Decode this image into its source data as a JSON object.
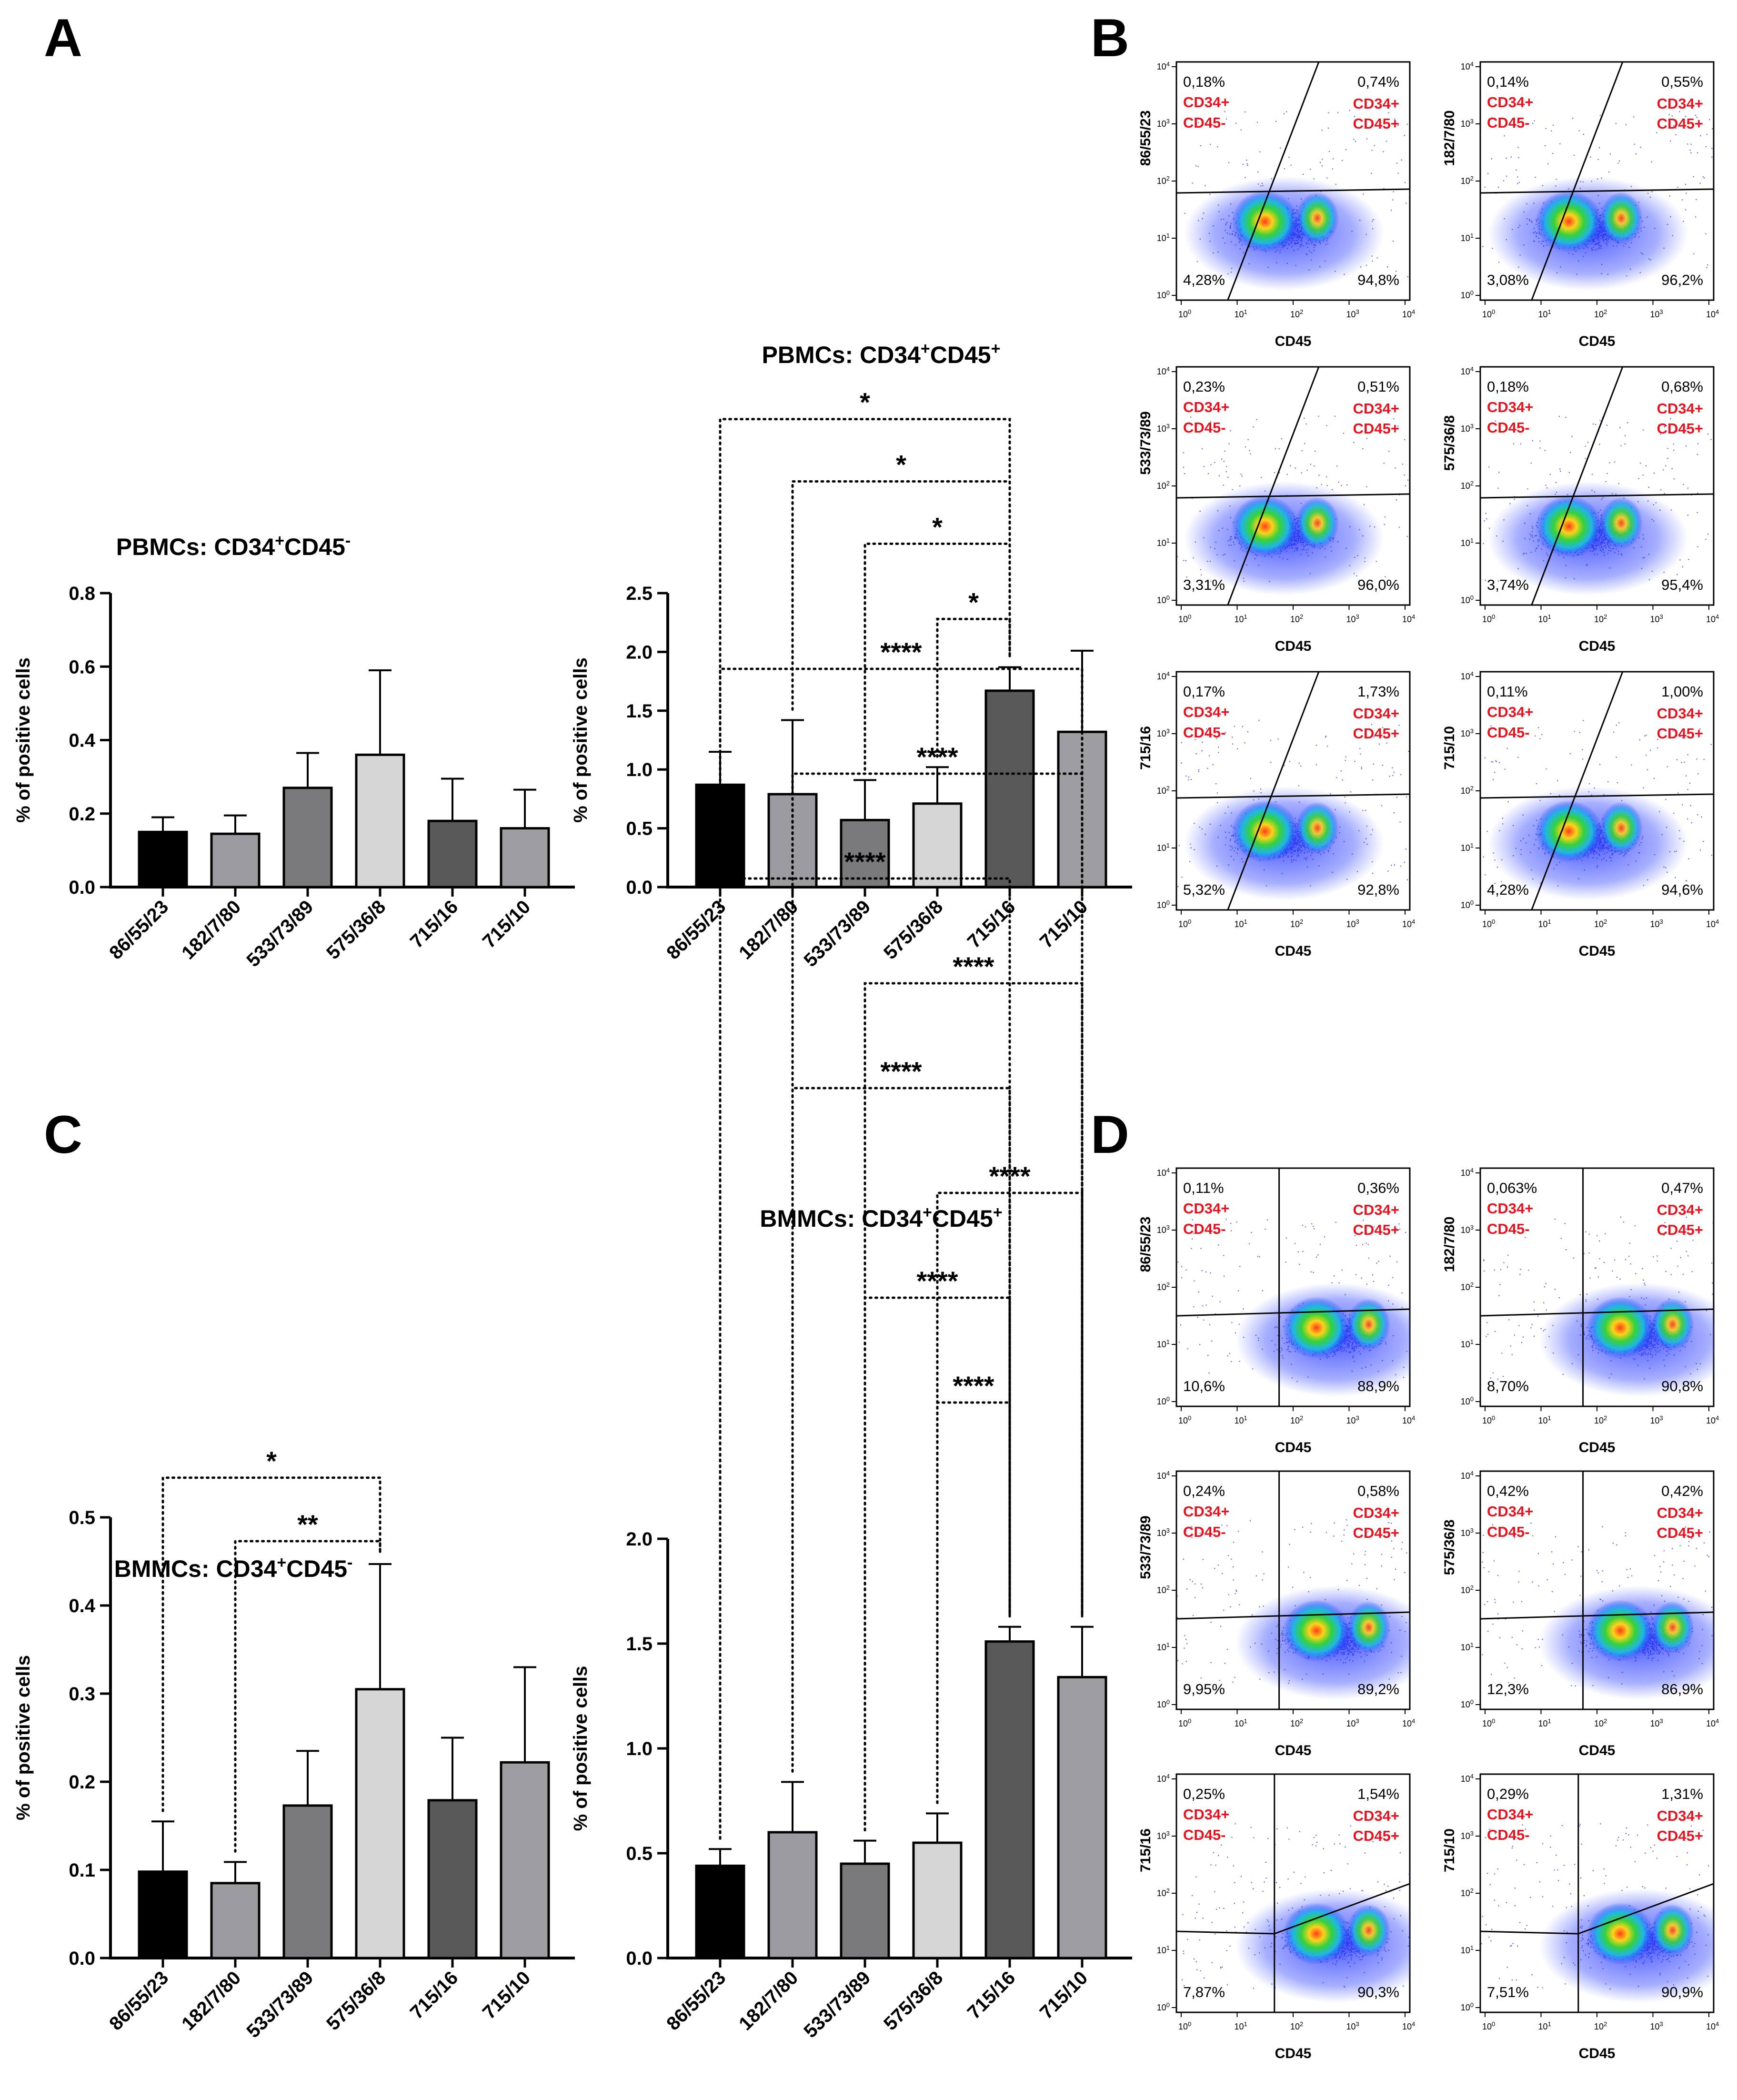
{
  "panel_letters": [
    "A",
    "B",
    "C",
    "D"
  ],
  "colors": {
    "bars": [
      "#000000",
      "#9c9ca0",
      "#7a7a7c",
      "#d6d6d6",
      "#595959",
      "#9e9ea2"
    ],
    "marker_red": "#e8121e",
    "gate_line": "#000000"
  },
  "chart_data": [
    {
      "id": "A1",
      "type": "bar",
      "title": "PBMCs: CD34",
      "title_sup1": "+",
      "title_mid": "CD45",
      "title_sup2": "-",
      "ylabel": "% of positive cells",
      "categories": [
        "86/55/23",
        "182/7/80",
        "533/73/89",
        "575/36/8",
        "715/16",
        "715/10"
      ],
      "values": [
        0.15,
        0.145,
        0.27,
        0.36,
        0.18,
        0.16
      ],
      "errors": [
        0.04,
        0.05,
        0.095,
        0.23,
        0.115,
        0.105
      ],
      "ylim": [
        0,
        0.8
      ],
      "yticks": [
        "0.0",
        "0.2",
        "0.4",
        "0.6",
        "0.8"
      ],
      "yticks_values": [
        0,
        0.2,
        0.4,
        0.6,
        0.8
      ],
      "significance": []
    },
    {
      "id": "A2",
      "type": "bar",
      "title": "PBMCs: CD34",
      "title_sup1": "+",
      "title_mid": "CD45",
      "title_sup2": "+",
      "ylabel": "% of positive cells",
      "categories": [
        "86/55/23",
        "182/7/80",
        "533/73/89",
        "575/36/8",
        "715/16",
        "715/10"
      ],
      "values": [
        0.87,
        0.79,
        0.57,
        0.71,
        1.67,
        1.32
      ],
      "errors": [
        0.28,
        0.63,
        0.34,
        0.31,
        0.2,
        0.69
      ],
      "ylim": [
        0,
        2.5
      ],
      "yticks": [
        "0.0",
        "0.5",
        "1.0",
        "1.5",
        "2.0",
        "2.5"
      ],
      "yticks_values": [
        0,
        0.5,
        1.0,
        1.5,
        2.0,
        2.5
      ],
      "significance": [
        {
          "from": 0,
          "to": 4,
          "label": "*",
          "level": 3.98
        },
        {
          "from": 1,
          "to": 4,
          "label": "*",
          "level": 3.45
        },
        {
          "from": 2,
          "to": 4,
          "label": "*",
          "level": 2.92
        },
        {
          "from": 3,
          "to": 4,
          "label": "*",
          "level": 2.28
        }
      ]
    },
    {
      "id": "C1",
      "type": "bar",
      "title": "BMMCs: CD34",
      "title_sup1": "+",
      "title_mid": "CD45",
      "title_sup2": "-",
      "ylabel": "% of positive cells",
      "categories": [
        "86/55/23",
        "182/7/80",
        "533/73/89",
        "575/36/8",
        "715/16",
        "715/10"
      ],
      "values": [
        0.098,
        0.085,
        0.173,
        0.305,
        0.179,
        0.222
      ],
      "errors": [
        0.057,
        0.024,
        0.062,
        0.142,
        0.071,
        0.108
      ],
      "ylim": [
        0,
        0.5
      ],
      "yticks": [
        "0.0",
        "0.1",
        "0.2",
        "0.3",
        "0.4",
        "0.5"
      ],
      "yticks_values": [
        0,
        0.1,
        0.2,
        0.3,
        0.4,
        0.5
      ],
      "significance": [
        {
          "from": 0,
          "to": 3,
          "label": "*",
          "level": 0.545
        },
        {
          "from": 1,
          "to": 3,
          "label": "**",
          "level": 0.473
        }
      ]
    },
    {
      "id": "C2",
      "type": "bar",
      "title": "BMMCs: CD34",
      "title_sup1": "+",
      "title_mid": "CD45",
      "title_sup2": "+",
      "ylabel": "% of positive cells",
      "categories": [
        "86/55/23",
        "182/7/80",
        "533/73/89",
        "575/36/8",
        "715/16",
        "715/10"
      ],
      "values": [
        0.44,
        0.6,
        0.45,
        0.55,
        1.51,
        1.34
      ],
      "errors": [
        0.08,
        0.24,
        0.11,
        0.14,
        0.07,
        0.24
      ],
      "ylim": [
        0,
        2.0
      ],
      "yticks": [
        "0.0",
        "0.5",
        "1.0",
        "1.5",
        "2.0"
      ],
      "yticks_values": [
        0,
        0.5,
        1.0,
        1.5,
        2.0
      ],
      "significance": [
        {
          "from": 0,
          "to": 5,
          "label": "****",
          "level": 6.15
        },
        {
          "from": 1,
          "to": 5,
          "label": "****",
          "level": 5.65
        },
        {
          "from": 0,
          "to": 4,
          "label": "****",
          "level": 5.15
        },
        {
          "from": 2,
          "to": 5,
          "label": "****",
          "level": 4.65
        },
        {
          "from": 1,
          "to": 4,
          "label": "****",
          "level": 4.15
        },
        {
          "from": 3,
          "to": 5,
          "label": "****",
          "level": 3.65
        },
        {
          "from": 2,
          "to": 4,
          "label": "****",
          "level": 3.15
        },
        {
          "from": 3,
          "to": 4,
          "label": "****",
          "level": 2.65
        }
      ]
    }
  ],
  "flow_plots": {
    "xlabel": "CD45",
    "x_ticks": [
      "0",
      "1",
      "2",
      "3",
      "4"
    ],
    "y_ticks": [
      "0",
      "1",
      "2",
      "3",
      "4"
    ],
    "quadrant_labels": {
      "ul_l1": "CD34+",
      "ul_l2": "CD45-",
      "ur_l1": "CD34+",
      "ur_l2": "CD45+"
    },
    "B": [
      {
        "sample": "86/55/23",
        "ul": "0,18%",
        "ur": "0,74%",
        "ll": "4,28%",
        "lr": "94,8%"
      },
      {
        "sample": "182/7/80",
        "ul": "0,14%",
        "ur": "0,55%",
        "ll": "3,08%",
        "lr": "96,2%"
      },
      {
        "sample": "533/73/89",
        "ul": "0,23%",
        "ur": "0,51%",
        "ll": "3,31%",
        "lr": "96,0%"
      },
      {
        "sample": "575/36/8",
        "ul": "0,18%",
        "ur": "0,68%",
        "ll": "3,74%",
        "lr": "95,4%"
      },
      {
        "sample": "715/16",
        "ul": "0,17%",
        "ur": "1,73%",
        "ll": "5,32%",
        "lr": "92,8%"
      },
      {
        "sample": "715/10",
        "ul": "0,11%",
        "ur": "1,00%",
        "ll": "4,28%",
        "lr": "94,6%"
      }
    ],
    "D": [
      {
        "sample": "86/55/23",
        "ul": "0,11%",
        "ur": "0,36%",
        "ll": "10,6%",
        "lr": "88,9%"
      },
      {
        "sample": "182/7/80",
        "ul": "0,063%",
        "ur": "0,47%",
        "ll": "8,70%",
        "lr": "90,8%"
      },
      {
        "sample": "533/73/89",
        "ul": "0,24%",
        "ur": "0,58%",
        "ll": "9,95%",
        "lr": "89,2%"
      },
      {
        "sample": "575/36/8",
        "ul": "0,42%",
        "ur": "0,42%",
        "ll": "12,3%",
        "lr": "86,9%"
      },
      {
        "sample": "715/16",
        "ul": "0,25%",
        "ur": "1,54%",
        "ll": "7,87%",
        "lr": "90,3%"
      },
      {
        "sample": "715/10",
        "ul": "0,29%",
        "ur": "1,31%",
        "ll": "7,51%",
        "lr": "90,9%"
      }
    ]
  }
}
